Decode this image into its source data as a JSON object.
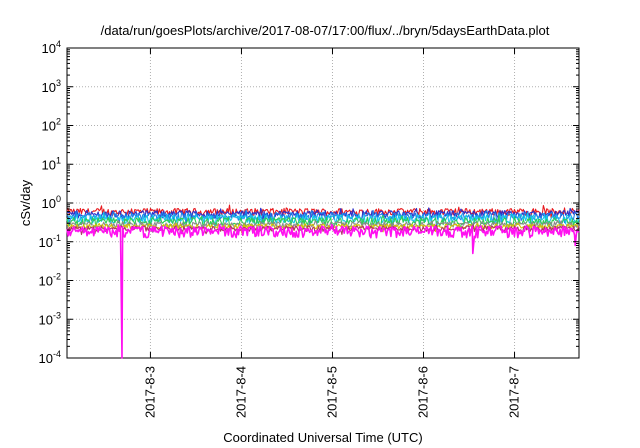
{
  "chart_data": {
    "type": "line",
    "title": "/data/run/goesPlots/archive/2017-08-07/17:00/flux/../bryn/5daysEarthData.plot",
    "xlabel": "Coordinated Universal Time (UTC)",
    "ylabel": "cSv/day",
    "y_scale": "log",
    "ylim": [
      0.0001,
      10000
    ],
    "y_ticks": [
      {
        "base": "10",
        "exp": "4",
        "value": 10000
      },
      {
        "base": "10",
        "exp": "3",
        "value": 1000
      },
      {
        "base": "10",
        "exp": "2",
        "value": 100
      },
      {
        "base": "10",
        "exp": "1",
        "value": 10
      },
      {
        "base": "10",
        "exp": "0",
        "value": 1
      },
      {
        "base": "10",
        "exp": "-1",
        "value": 0.1
      },
      {
        "base": "10",
        "exp": "-2",
        "value": 0.01
      },
      {
        "base": "10",
        "exp": "-3",
        "value": 0.001
      },
      {
        "base": "10",
        "exp": "-4",
        "value": 0.0001
      }
    ],
    "xlim": [
      "2017-08-02T02:00",
      "2017-08-07T17:00"
    ],
    "x_ticks": [
      {
        "label": "2017-8-3",
        "value": "2017-08-03T00:00"
      },
      {
        "label": "2017-8-4",
        "value": "2017-08-04T00:00"
      },
      {
        "label": "2017-8-5",
        "value": "2017-08-05T00:00"
      },
      {
        "label": "2017-8-6",
        "value": "2017-08-06T00:00"
      },
      {
        "label": "2017-8-7",
        "value": "2017-08-07T00:00"
      }
    ],
    "grid": true,
    "legend": "none",
    "series": [
      {
        "color": "#e8191e",
        "level": 0.6,
        "noise": 0.14
      },
      {
        "color": "#2d2ec8",
        "level": 0.52,
        "noise": 0.13
      },
      {
        "color": "#1b7fe8",
        "level": 0.46,
        "noise": 0.12
      },
      {
        "color": "#14c8ea",
        "level": 0.4,
        "noise": 0.11
      },
      {
        "color": "#2ecc54",
        "level": 0.34,
        "noise": 0.09
      },
      {
        "color": "#8a8a8a",
        "level": 0.28,
        "noise": 0.05
      },
      {
        "color": "#d4c400",
        "level": 0.25,
        "noise": 0.04
      },
      {
        "color": "#b0306a",
        "level": 0.22,
        "noise": 0.04
      },
      {
        "color": "#ff10f0",
        "level": 0.19,
        "noise": 0.07,
        "dips": [
          {
            "x": "2017-08-02T16:30",
            "y": 0.0001
          },
          {
            "x": "2017-08-06T13:00",
            "y": 0.05
          },
          {
            "x": "2017-08-07T16:00",
            "y": 0.08
          }
        ]
      }
    ]
  }
}
